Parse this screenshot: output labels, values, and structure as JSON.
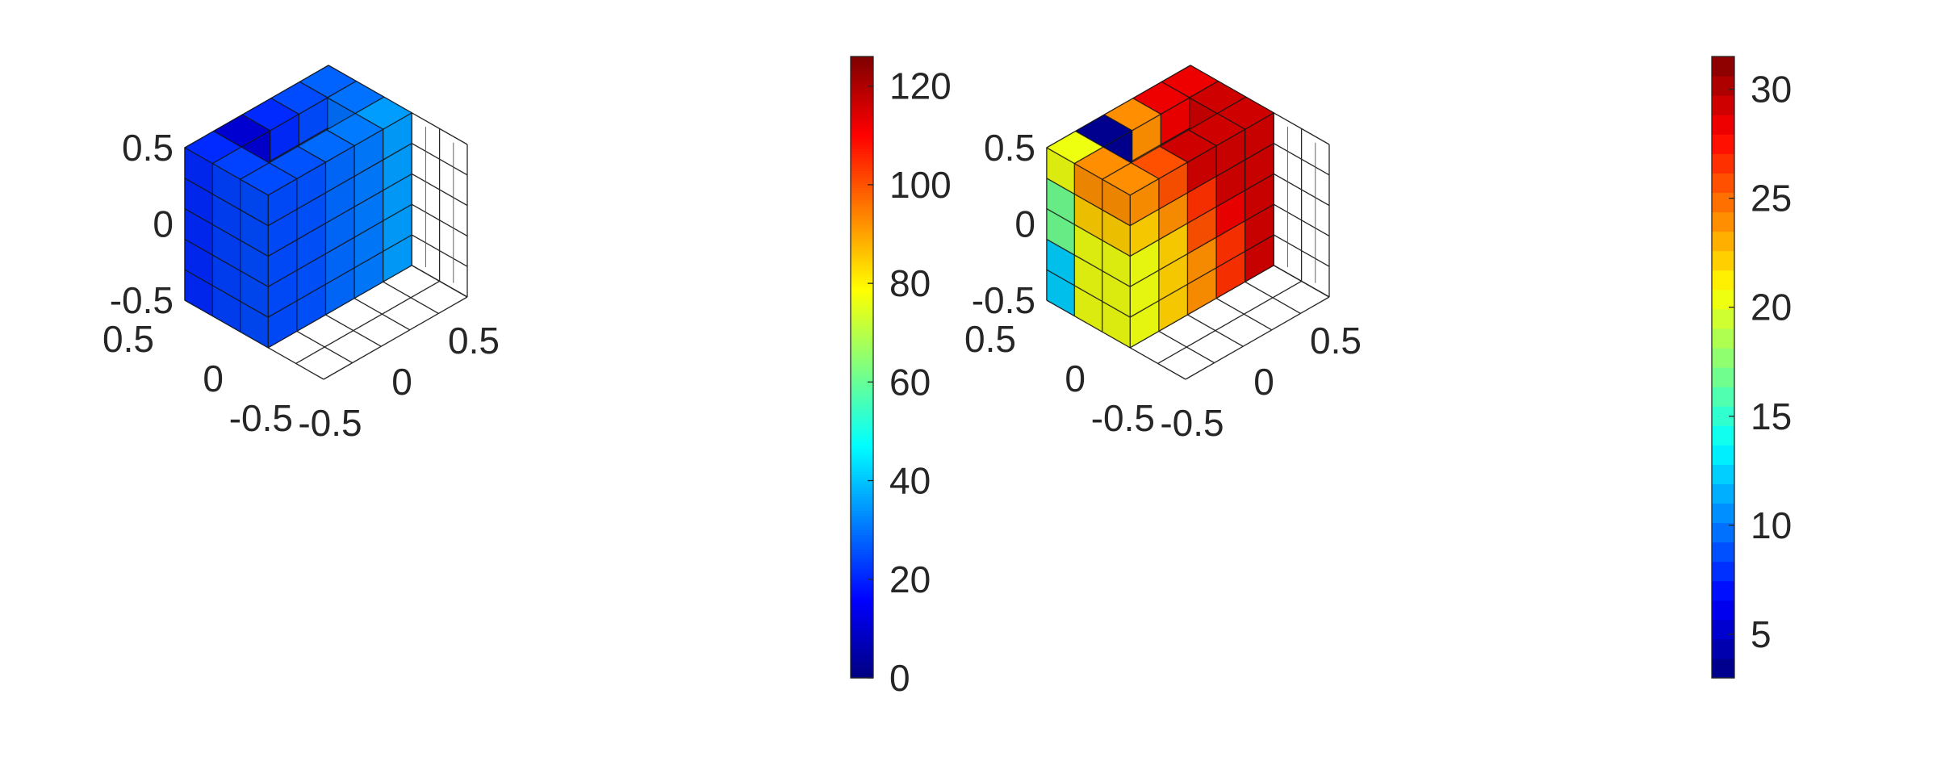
{
  "chart_data": [
    {
      "type": "3d-voxel",
      "title": "",
      "colormap": "jet",
      "colorbar": {
        "range": [
          0,
          126
        ],
        "levels": 256,
        "ticks": [
          0,
          20,
          40,
          60,
          80,
          100,
          120
        ],
        "tick_labels": [
          "0",
          "20",
          "40",
          "60",
          "80",
          "100",
          "120"
        ]
      },
      "axes": {
        "xlim": [
          -0.5,
          0.5
        ],
        "ylim": [
          -0.5,
          0.5
        ],
        "zlim": [
          -0.5,
          0.5
        ],
        "x_ticks": [
          "-0.5",
          "0",
          "0.5"
        ],
        "y_ticks": [
          "-0.5",
          "0",
          "0.5"
        ],
        "z_ticks": [
          "-0.5",
          "0",
          "0.5"
        ],
        "grid_divisions": 5,
        "grid": true
      },
      "columns": [
        {
          "i": 0,
          "j": 0,
          "values": [
            21,
            21,
            21,
            21,
            21
          ]
        },
        {
          "i": 0,
          "j": 1,
          "values": [
            10,
            10,
            10,
            10,
            10
          ]
        },
        {
          "i": 0,
          "j": 2,
          "values": [
            21,
            21,
            21,
            21,
            21
          ]
        },
        {
          "i": 0,
          "j": 3,
          "values": [
            25,
            25,
            25,
            25,
            25
          ]
        },
        {
          "i": 0,
          "j": 4,
          "values": [
            28,
            28,
            28,
            28,
            28
          ]
        },
        {
          "i": 1,
          "j": 0,
          "values": [
            24,
            24,
            24,
            24,
            24
          ]
        },
        {
          "i": 1,
          "j": 4,
          "values": [
            30,
            30,
            30,
            30,
            30
          ]
        },
        {
          "i": 2,
          "j": 0,
          "values": [
            25,
            25,
            25,
            25,
            25
          ]
        },
        {
          "i": 2,
          "j": 1,
          "values": [
            26,
            26,
            26,
            26,
            26
          ]
        },
        {
          "i": 2,
          "j": 2,
          "values": [
            29,
            29,
            29,
            29,
            29
          ]
        },
        {
          "i": 2,
          "j": 3,
          "values": [
            31,
            31,
            31,
            31,
            31
          ]
        },
        {
          "i": 2,
          "j": 4,
          "values": [
            35,
            35,
            35,
            35,
            35
          ]
        }
      ]
    },
    {
      "type": "3d-voxel",
      "title": "",
      "colormap": "jet",
      "colorbar": {
        "range": [
          3,
          31.5
        ],
        "levels": 32,
        "ticks": [
          5,
          10,
          15,
          20,
          25,
          30
        ],
        "tick_labels": [
          "5",
          "10",
          "15",
          "20",
          "25",
          "30"
        ]
      },
      "axes": {
        "xlim": [
          -0.5,
          0.5
        ],
        "ylim": [
          -0.5,
          0.5
        ],
        "zlim": [
          -0.5,
          0.5
        ],
        "x_ticks": [
          "-0.5",
          "0",
          "0.5"
        ],
        "y_ticks": [
          "-0.5",
          "0",
          "0.5"
        ],
        "z_ticks": [
          "-0.5",
          "0",
          "0.5"
        ],
        "grid_divisions": 5,
        "grid": true
      },
      "columns": [
        {
          "i": 0,
          "j": 0,
          "values": [
            12,
            12,
            17,
            17,
            20
          ]
        },
        {
          "i": 0,
          "j": 1,
          "values": [
            12,
            3,
            3,
            3,
            3
          ]
        },
        {
          "i": 0,
          "j": 2,
          "values": [
            17,
            21,
            21,
            24,
            24
          ]
        },
        {
          "i": 0,
          "j": 3,
          "values": [
            20,
            28,
            29,
            29,
            28
          ]
        },
        {
          "i": 0,
          "j": 4,
          "values": [
            21,
            25,
            29,
            29,
            28
          ]
        },
        {
          "i": 1,
          "j": 0,
          "values": [
            20,
            20,
            20,
            22,
            24
          ]
        },
        {
          "i": 1,
          "j": 4,
          "values": [
            29,
            29,
            29,
            29,
            29
          ]
        },
        {
          "i": 2,
          "j": 0,
          "values": [
            20,
            20,
            20,
            22,
            24
          ]
        },
        {
          "i": 2,
          "j": 1,
          "values": [
            22,
            22,
            22,
            24,
            26
          ]
        },
        {
          "i": 2,
          "j": 2,
          "values": [
            24,
            24,
            26,
            27,
            29
          ]
        },
        {
          "i": 2,
          "j": 3,
          "values": [
            27,
            27,
            28,
            29,
            29
          ]
        },
        {
          "i": 2,
          "j": 4,
          "values": [
            29,
            29,
            29,
            29,
            29
          ]
        }
      ]
    }
  ]
}
